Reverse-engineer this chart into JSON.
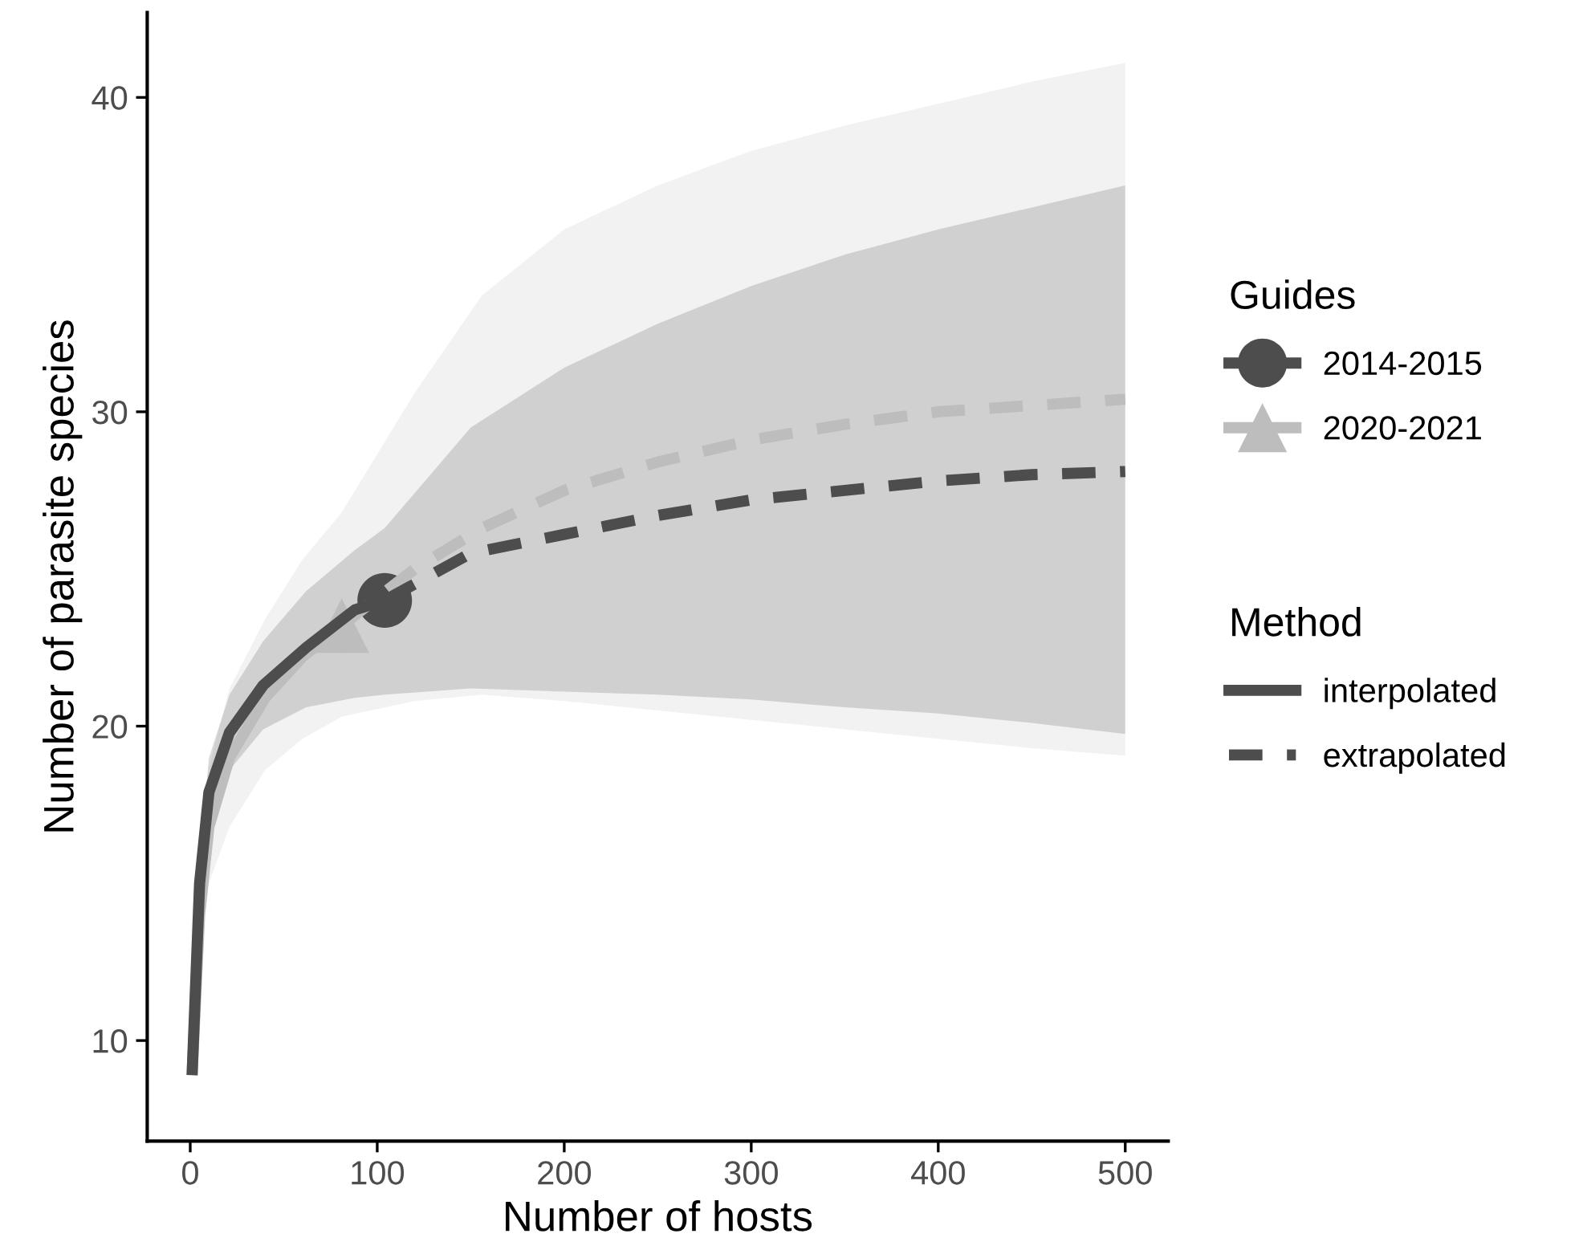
{
  "chart_data": {
    "type": "line",
    "xlabel": "Number of hosts",
    "ylabel": "Number of parasite species",
    "legend_title": [
      "Guides",
      "Method"
    ],
    "xlim": [
      -23,
      523
    ],
    "xticks": [
      0,
      100,
      200,
      300,
      400,
      500
    ],
    "ylim": [
      6.8,
      42.7
    ],
    "yticks": [
      10,
      20,
      30,
      40
    ],
    "grid": false,
    "legend": "right",
    "series": [
      {
        "line_style": "solid",
        "color": "#bdbdbd",
        "x": [
          1,
          5,
          10,
          21,
          40,
          60,
          81
        ],
        "values": [
          8.9,
          14.0,
          16.8,
          19.0,
          20.9,
          22.2,
          23.2
        ],
        "lower": [
          8.9,
          12.5,
          15.0,
          16.8,
          18.6,
          19.6,
          20.3
        ],
        "upper": [
          8.9,
          15.5,
          18.7,
          21.2,
          23.4,
          25.3,
          26.8
        ]
      },
      {
        "line_style": "dashed",
        "color": "#bdbdbd",
        "x": [
          81,
          120,
          156,
          200,
          250,
          300,
          350,
          400,
          450,
          500
        ],
        "values": [
          23.2,
          25.0,
          26.3,
          27.5,
          28.4,
          29.1,
          29.6,
          30.0,
          30.2,
          30.4
        ],
        "lower": [
          20.3,
          20.8,
          21.0,
          20.8,
          20.5,
          20.2,
          19.9,
          19.6,
          19.3,
          19.06
        ],
        "upper": [
          26.8,
          30.6,
          33.7,
          35.8,
          37.2,
          38.3,
          39.1,
          39.8,
          40.5,
          41.1
        ]
      },
      {
        "name": "interpolated",
        "line_style": "solid",
        "color": "#4d4d4d",
        "x": [
          1,
          5,
          10,
          21,
          39,
          62,
          88,
          104
        ],
        "values": [
          8.9,
          15.0,
          17.9,
          19.8,
          21.3,
          22.5,
          23.7,
          24.0
        ],
        "lower": [
          8.9,
          14.2,
          16.8,
          18.6,
          19.9,
          20.6,
          20.9,
          21.0
        ],
        "upper": [
          8.9,
          15.8,
          19.0,
          21.0,
          22.7,
          24.3,
          25.6,
          26.3
        ]
      },
      {
        "name": "extrapolated",
        "line_style": "dashed",
        "color": "#4d4d4d",
        "x": [
          104,
          150,
          200,
          250,
          300,
          350,
          400,
          450,
          500
        ],
        "values": [
          24.0,
          25.5,
          26.1,
          26.7,
          27.2,
          27.5,
          27.8,
          28.0,
          28.1
        ],
        "lower": [
          21.0,
          21.2,
          21.1,
          21.0,
          20.85,
          20.6,
          20.4,
          20.1,
          19.75
        ],
        "upper": [
          26.3,
          29.5,
          31.4,
          32.8,
          34.0,
          35.0,
          35.8,
          36.5,
          37.2
        ]
      },
      {
        "name": "2014-2015",
        "type": "scatter",
        "marker": "circle",
        "color": "#4d4d4d",
        "x": [
          104
        ],
        "values": [
          24.0
        ]
      },
      {
        "name": "2020-2021",
        "type": "scatter",
        "marker": "triangle",
        "color": "#bdbdbd",
        "x": [
          81
        ],
        "values": [
          23.2
        ]
      }
    ]
  }
}
